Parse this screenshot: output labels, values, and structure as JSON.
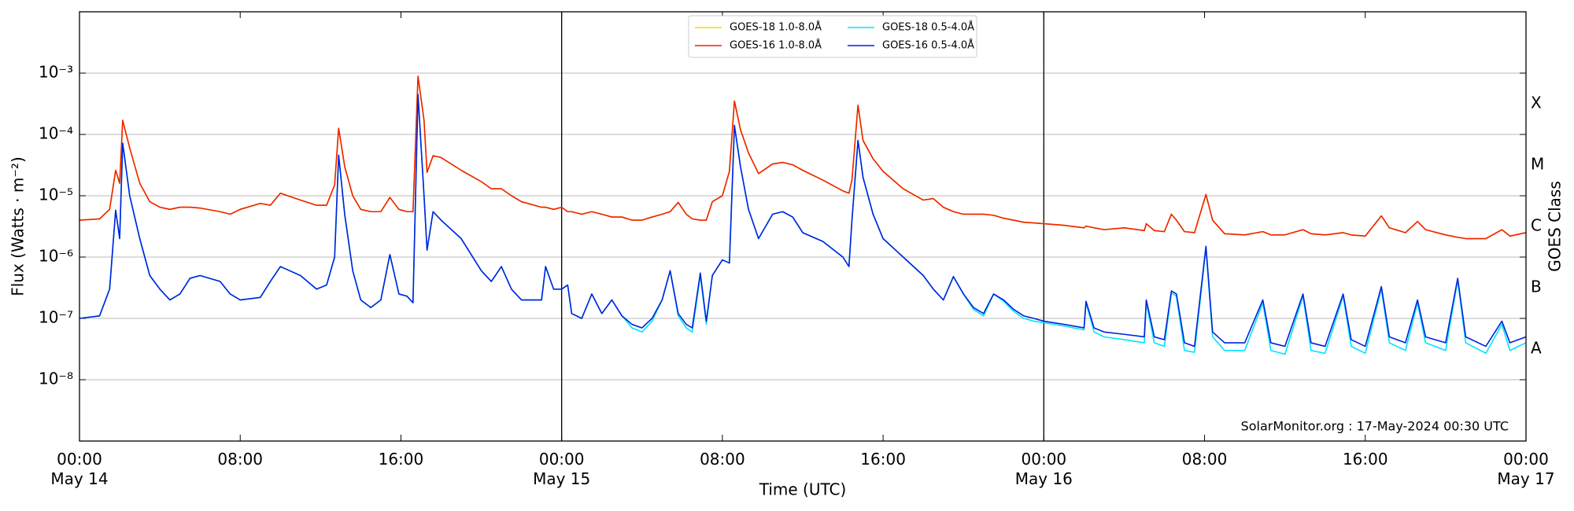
{
  "chart_data": {
    "type": "line",
    "xlabel": "Time (UTC)",
    "ylabel": "Flux (Watts · m⁻²)",
    "y2label": "GOES Class",
    "annotation": "SolarMonitor.org : 17-May-2024 00:30 UTC",
    "log_y": true,
    "grid": true,
    "legend": "upper center",
    "xlim": [
      0,
      72
    ],
    "xticks": [
      {
        "value": 0,
        "label": "00:00\nMay 14"
      },
      {
        "value": 8,
        "label": "08:00"
      },
      {
        "value": 16,
        "label": "16:00"
      },
      {
        "value": 24,
        "label": "00:00\nMay 15"
      },
      {
        "value": 32,
        "label": "08:00"
      },
      {
        "value": 40,
        "label": "16:00"
      },
      {
        "value": 48,
        "label": "00:00\nMay 16"
      },
      {
        "value": 56,
        "label": "08:00"
      },
      {
        "value": 64,
        "label": "16:00"
      },
      {
        "value": 72,
        "label": "00:00\nMay 17"
      }
    ],
    "day_lines": [
      24,
      48
    ],
    "ylim": [
      1e-09,
      0.01
    ],
    "yticks": [
      {
        "value": 1e-08,
        "label": "10⁻⁸"
      },
      {
        "value": 1e-07,
        "label": "10⁻⁷"
      },
      {
        "value": 1e-06,
        "label": "10⁻⁶"
      },
      {
        "value": 1e-05,
        "label": "10⁻⁵"
      },
      {
        "value": 0.0001,
        "label": "10⁻⁴"
      },
      {
        "value": 0.001,
        "label": "10⁻³"
      }
    ],
    "y2lim": [
      1e-09,
      0.01
    ],
    "y2ticks": [
      {
        "value": 3.16e-08,
        "label": "A"
      },
      {
        "value": 3.16e-07,
        "label": "B"
      },
      {
        "value": 3.16e-06,
        "label": "C"
      },
      {
        "value": 3.16e-05,
        "label": "M"
      },
      {
        "value": 0.000316,
        "label": "X"
      }
    ],
    "x": [
      0,
      1,
      1.5,
      1.8,
      2.0,
      2.15,
      2.5,
      3,
      3.5,
      4,
      4.5,
      5,
      5.5,
      6,
      7,
      7.5,
      8,
      9,
      9.5,
      10,
      11,
      11.8,
      12.3,
      12.7,
      12.9,
      13.2,
      13.6,
      14,
      14.5,
      15,
      15.45,
      15.9,
      16.3,
      16.6,
      16.85,
      17.15,
      17.3,
      17.6,
      18,
      19,
      20,
      20.5,
      21,
      21.5,
      22,
      23,
      23.2,
      23.6,
      24,
      24.3,
      24.5,
      25,
      25.5,
      26,
      26.5,
      27,
      27.5,
      28,
      28.5,
      29,
      29.4,
      29.8,
      30.2,
      30.5,
      30.9,
      31.2,
      31.5,
      32,
      32.35,
      32.6,
      32.9,
      33.3,
      33.8,
      34.5,
      35,
      35.5,
      36,
      37,
      38,
      38.3,
      38.45,
      38.75,
      39,
      39.5,
      40,
      41,
      42,
      42.5,
      43,
      43.5,
      44,
      44.5,
      45,
      45.5,
      46,
      46.5,
      47,
      47.5,
      48,
      49,
      50,
      50.1,
      50.5,
      51,
      52,
      53,
      53.1,
      53.5,
      54,
      54.35,
      54.6,
      55,
      55.5,
      56.07,
      56.4,
      57,
      58,
      58.9,
      59.3,
      60,
      60.9,
      61.3,
      62,
      62.9,
      63.3,
      64,
      64.8,
      65.2,
      66,
      66.6,
      67,
      68,
      68.6,
      69,
      70,
      70.8,
      71.2,
      72
    ],
    "series": [
      {
        "name": "GOES-18 1.0-8.0Å",
        "color": "#ffd700",
        "values": [
          4e-06,
          4.2e-06,
          6e-06,
          2.6e-05,
          1.6e-05,
          0.00017,
          6e-05,
          1.6e-05,
          8e-06,
          6.5e-06,
          6e-06,
          6.5e-06,
          6.5e-06,
          6.3e-06,
          5.5e-06,
          5e-06,
          6e-06,
          7.5e-06,
          7e-06,
          1.1e-05,
          8.5e-06,
          7e-06,
          7e-06,
          1.5e-05,
          0.000126,
          3e-05,
          1e-05,
          6e-06,
          5.5e-06,
          5.5e-06,
          9.4e-06,
          6e-06,
          5.5e-06,
          5.5e-06,
          0.00089,
          0.00017,
          2.4e-05,
          4.5e-05,
          4.2e-05,
          2.6e-05,
          1.7e-05,
          1.3e-05,
          1.3e-05,
          1e-05,
          8e-06,
          6.5e-06,
          6.5e-06,
          6e-06,
          6.5e-06,
          5.5e-06,
          5.5e-06,
          5e-06,
          5.5e-06,
          5e-06,
          4.5e-06,
          4.5e-06,
          4e-06,
          4e-06,
          4.5e-06,
          5e-06,
          5.5e-06,
          7.8e-06,
          5e-06,
          4.2e-06,
          4e-06,
          4e-06,
          8e-06,
          1e-05,
          2.5e-05,
          0.00035,
          0.00012,
          5e-05,
          2.3e-05,
          3.3e-05,
          3.5e-05,
          3.2e-05,
          2.6e-05,
          1.8e-05,
          1.2e-05,
          1.1e-05,
          1.8e-05,
          0.0003,
          8e-05,
          4e-05,
          2.5e-05,
          1.3e-05,
          8.5e-06,
          9e-06,
          6.5e-06,
          5.5e-06,
          5e-06,
          5e-06,
          5e-06,
          4.8e-06,
          4.3e-06,
          4e-06,
          3.7e-06,
          3.6e-06,
          3.5e-06,
          3.3e-06,
          3e-06,
          3.2e-06,
          3e-06,
          2.8e-06,
          3e-06,
          2.7e-06,
          3.5e-06,
          2.7e-06,
          2.6e-06,
          5e-06,
          4e-06,
          2.6e-06,
          2.5e-06,
          1.05e-05,
          4e-06,
          2.4e-06,
          2.3e-06,
          2.6e-06,
          2.3e-06,
          2.3e-06,
          2.8e-06,
          2.4e-06,
          2.3e-06,
          2.5e-06,
          2.3e-06,
          2.2e-06,
          4.7e-06,
          3e-06,
          2.5e-06,
          3.8e-06,
          2.8e-06,
          2.3e-06,
          2.1e-06,
          2e-06,
          2e-06,
          2.8e-06,
          2.2e-06,
          2.5e-06
        ]
      },
      {
        "name": "GOES-16 1.0-8.0Å",
        "color": "#ee2200",
        "values": [
          4e-06,
          4.2e-06,
          6e-06,
          2.6e-05,
          1.6e-05,
          0.00017,
          6e-05,
          1.6e-05,
          8e-06,
          6.5e-06,
          6e-06,
          6.5e-06,
          6.5e-06,
          6.3e-06,
          5.5e-06,
          5e-06,
          6e-06,
          7.5e-06,
          7e-06,
          1.1e-05,
          8.5e-06,
          7e-06,
          7e-06,
          1.5e-05,
          0.000126,
          3e-05,
          1e-05,
          6e-06,
          5.5e-06,
          5.5e-06,
          9.4e-06,
          6e-06,
          5.5e-06,
          5.5e-06,
          0.00089,
          0.00017,
          2.4e-05,
          4.5e-05,
          4.2e-05,
          2.6e-05,
          1.7e-05,
          1.3e-05,
          1.3e-05,
          1e-05,
          8e-06,
          6.5e-06,
          6.5e-06,
          6e-06,
          6.5e-06,
          5.5e-06,
          5.5e-06,
          5e-06,
          5.5e-06,
          5e-06,
          4.5e-06,
          4.5e-06,
          4e-06,
          4e-06,
          4.5e-06,
          5e-06,
          5.5e-06,
          7.8e-06,
          5e-06,
          4.2e-06,
          4e-06,
          4e-06,
          8e-06,
          1e-05,
          2.5e-05,
          0.00035,
          0.00012,
          5e-05,
          2.3e-05,
          3.3e-05,
          3.5e-05,
          3.2e-05,
          2.6e-05,
          1.8e-05,
          1.2e-05,
          1.1e-05,
          1.8e-05,
          0.0003,
          8e-05,
          4e-05,
          2.5e-05,
          1.3e-05,
          8.5e-06,
          9e-06,
          6.5e-06,
          5.5e-06,
          5e-06,
          5e-06,
          5e-06,
          4.8e-06,
          4.3e-06,
          4e-06,
          3.7e-06,
          3.6e-06,
          3.5e-06,
          3.3e-06,
          3e-06,
          3.2e-06,
          3e-06,
          2.8e-06,
          3e-06,
          2.7e-06,
          3.5e-06,
          2.7e-06,
          2.6e-06,
          5e-06,
          4e-06,
          2.6e-06,
          2.5e-06,
          1.05e-05,
          4e-06,
          2.4e-06,
          2.3e-06,
          2.6e-06,
          2.3e-06,
          2.3e-06,
          2.8e-06,
          2.4e-06,
          2.3e-06,
          2.5e-06,
          2.3e-06,
          2.2e-06,
          4.7e-06,
          3e-06,
          2.5e-06,
          3.8e-06,
          2.8e-06,
          2.3e-06,
          2.1e-06,
          2e-06,
          2e-06,
          2.8e-06,
          2.2e-06,
          2.5e-06
        ]
      },
      {
        "name": "GOES-18 0.5-4.0Å",
        "color": "#00e5ff",
        "values": [
          1e-07,
          1.1e-07,
          3e-07,
          5.8e-06,
          2e-06,
          7.2e-05,
          1e-05,
          2e-06,
          5e-07,
          3e-07,
          2e-07,
          2.5e-07,
          4.5e-07,
          5e-07,
          4e-07,
          2.5e-07,
          2e-07,
          2.2e-07,
          4e-07,
          7e-07,
          5e-07,
          3e-07,
          3.5e-07,
          1e-06,
          4.6e-05,
          5e-06,
          6e-07,
          2e-07,
          1.5e-07,
          2e-07,
          1.1e-06,
          2.5e-07,
          2.3e-07,
          1.8e-07,
          0.00045,
          1e-05,
          1.3e-06,
          5.5e-06,
          4e-06,
          2e-06,
          6e-07,
          4e-07,
          7e-07,
          3e-07,
          2e-07,
          2e-07,
          7e-07,
          3e-07,
          3e-07,
          3.5e-07,
          1.2e-07,
          1e-07,
          2.5e-07,
          1.2e-07,
          2e-07,
          1.1e-07,
          7e-08,
          6e-08,
          9e-08,
          2e-07,
          6e-07,
          1.1e-07,
          7e-08,
          6e-08,
          5e-07,
          8e-08,
          5e-07,
          9e-07,
          8e-07,
          0.00014,
          3e-05,
          6e-06,
          2e-06,
          5e-06,
          5.5e-06,
          4.5e-06,
          2.5e-06,
          1.8e-06,
          1e-06,
          7e-07,
          4e-06,
          8e-05,
          2e-05,
          5e-06,
          2e-06,
          1e-06,
          5e-07,
          3e-07,
          2e-07,
          4.8e-07,
          2.5e-07,
          1.4e-07,
          1.1e-07,
          2.5e-07,
          1.9e-07,
          1.3e-07,
          1e-07,
          9e-08,
          8.5e-08,
          7.5e-08,
          6.5e-08,
          1.8e-07,
          6e-08,
          5e-08,
          4.5e-08,
          4e-08,
          1.8e-07,
          4e-08,
          3.5e-08,
          2.6e-07,
          2.3e-07,
          3e-08,
          2.8e-08,
          1.4e-06,
          5e-08,
          3e-08,
          3e-08,
          1.8e-07,
          3e-08,
          2.6e-08,
          2.3e-07,
          3e-08,
          2.7e-08,
          2.3e-07,
          3.5e-08,
          2.7e-08,
          3e-07,
          4e-08,
          3e-08,
          1.8e-07,
          4e-08,
          3e-08,
          4.2e-07,
          4e-08,
          2.7e-08,
          8e-08,
          3e-08,
          4e-08
        ]
      },
      {
        "name": "GOES-16 0.5-4.0Å",
        "color": "#0022dd",
        "values": [
          1e-07,
          1.1e-07,
          3e-07,
          5.8e-06,
          2e-06,
          7.2e-05,
          1e-05,
          2e-06,
          5e-07,
          3e-07,
          2e-07,
          2.5e-07,
          4.5e-07,
          5e-07,
          4e-07,
          2.5e-07,
          2e-07,
          2.2e-07,
          4e-07,
          7e-07,
          5e-07,
          3e-07,
          3.5e-07,
          1e-06,
          4.6e-05,
          5e-06,
          6e-07,
          2e-07,
          1.5e-07,
          2e-07,
          1.1e-06,
          2.5e-07,
          2.3e-07,
          1.8e-07,
          0.00045,
          1e-05,
          1.3e-06,
          5.5e-06,
          4e-06,
          2e-06,
          6e-07,
          4e-07,
          7e-07,
          3e-07,
          2e-07,
          2e-07,
          7e-07,
          3e-07,
          3e-07,
          3.5e-07,
          1.2e-07,
          1e-07,
          2.5e-07,
          1.2e-07,
          2e-07,
          1.1e-07,
          8e-08,
          7e-08,
          1e-07,
          2e-07,
          6e-07,
          1.2e-07,
          8e-08,
          7e-08,
          5.5e-07,
          9e-08,
          5e-07,
          9e-07,
          8e-07,
          0.00014,
          3e-05,
          6e-06,
          2e-06,
          5e-06,
          5.5e-06,
          4.5e-06,
          2.5e-06,
          1.8e-06,
          1e-06,
          7e-07,
          4e-06,
          8e-05,
          2e-05,
          5e-06,
          2e-06,
          1e-06,
          5e-07,
          3e-07,
          2e-07,
          4.8e-07,
          2.5e-07,
          1.5e-07,
          1.2e-07,
          2.5e-07,
          2e-07,
          1.4e-07,
          1.1e-07,
          1e-07,
          9e-08,
          8e-08,
          7e-08,
          1.9e-07,
          7e-08,
          6e-08,
          5.5e-08,
          5e-08,
          2e-07,
          5e-08,
          4.5e-08,
          2.8e-07,
          2.5e-07,
          4e-08,
          3.5e-08,
          1.5e-06,
          6e-08,
          4e-08,
          4e-08,
          2e-07,
          4e-08,
          3.5e-08,
          2.5e-07,
          4e-08,
          3.5e-08,
          2.5e-07,
          4.5e-08,
          3.5e-08,
          3.3e-07,
          5e-08,
          4e-08,
          2e-07,
          5e-08,
          4e-08,
          4.5e-07,
          5e-08,
          3.5e-08,
          9e-08,
          4e-08,
          5e-08
        ]
      }
    ]
  }
}
